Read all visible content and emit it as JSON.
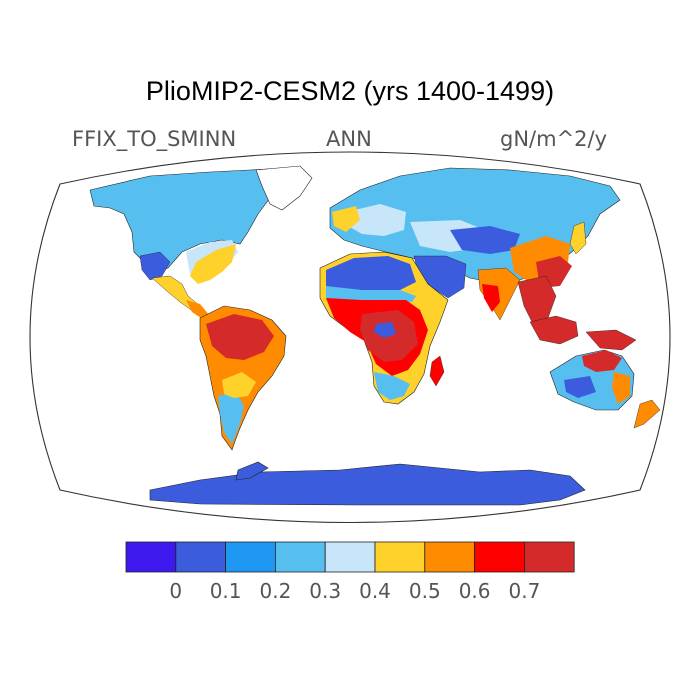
{
  "title": "PlioMIP2-CESM2 (yrs 1400-1499)",
  "left_label": "FFIX_TO_SMINN",
  "center_label": "ANN",
  "right_label": "gN/m^2/y",
  "projection": "Robinson (global)",
  "colorbar": {
    "colors": [
      "#3f18f0",
      "#3b5ddd",
      "#1f98f4",
      "#56bff0",
      "#c8e6fa",
      "#ffd12b",
      "#ff8c00",
      "#ff0000",
      "#d42a2a"
    ],
    "labels": [
      "0",
      "0.1",
      "0.2",
      "0.3",
      "0.4",
      "0.5",
      "0.6",
      "0.7"
    ]
  },
  "color_levels": {
    "ocean": "#ffffff",
    "boreal_land": "#56bff0",
    "deserts": "#3b5ddd",
    "antarctica": "#3b5ddd",
    "temperate_land": "#c8e6fa",
    "subtropics": "#ffd12b",
    "tropical_transition": "#ff8c00",
    "tropical_rainforest": "#d42a2a",
    "rainforest_edge": "#ff0000"
  }
}
